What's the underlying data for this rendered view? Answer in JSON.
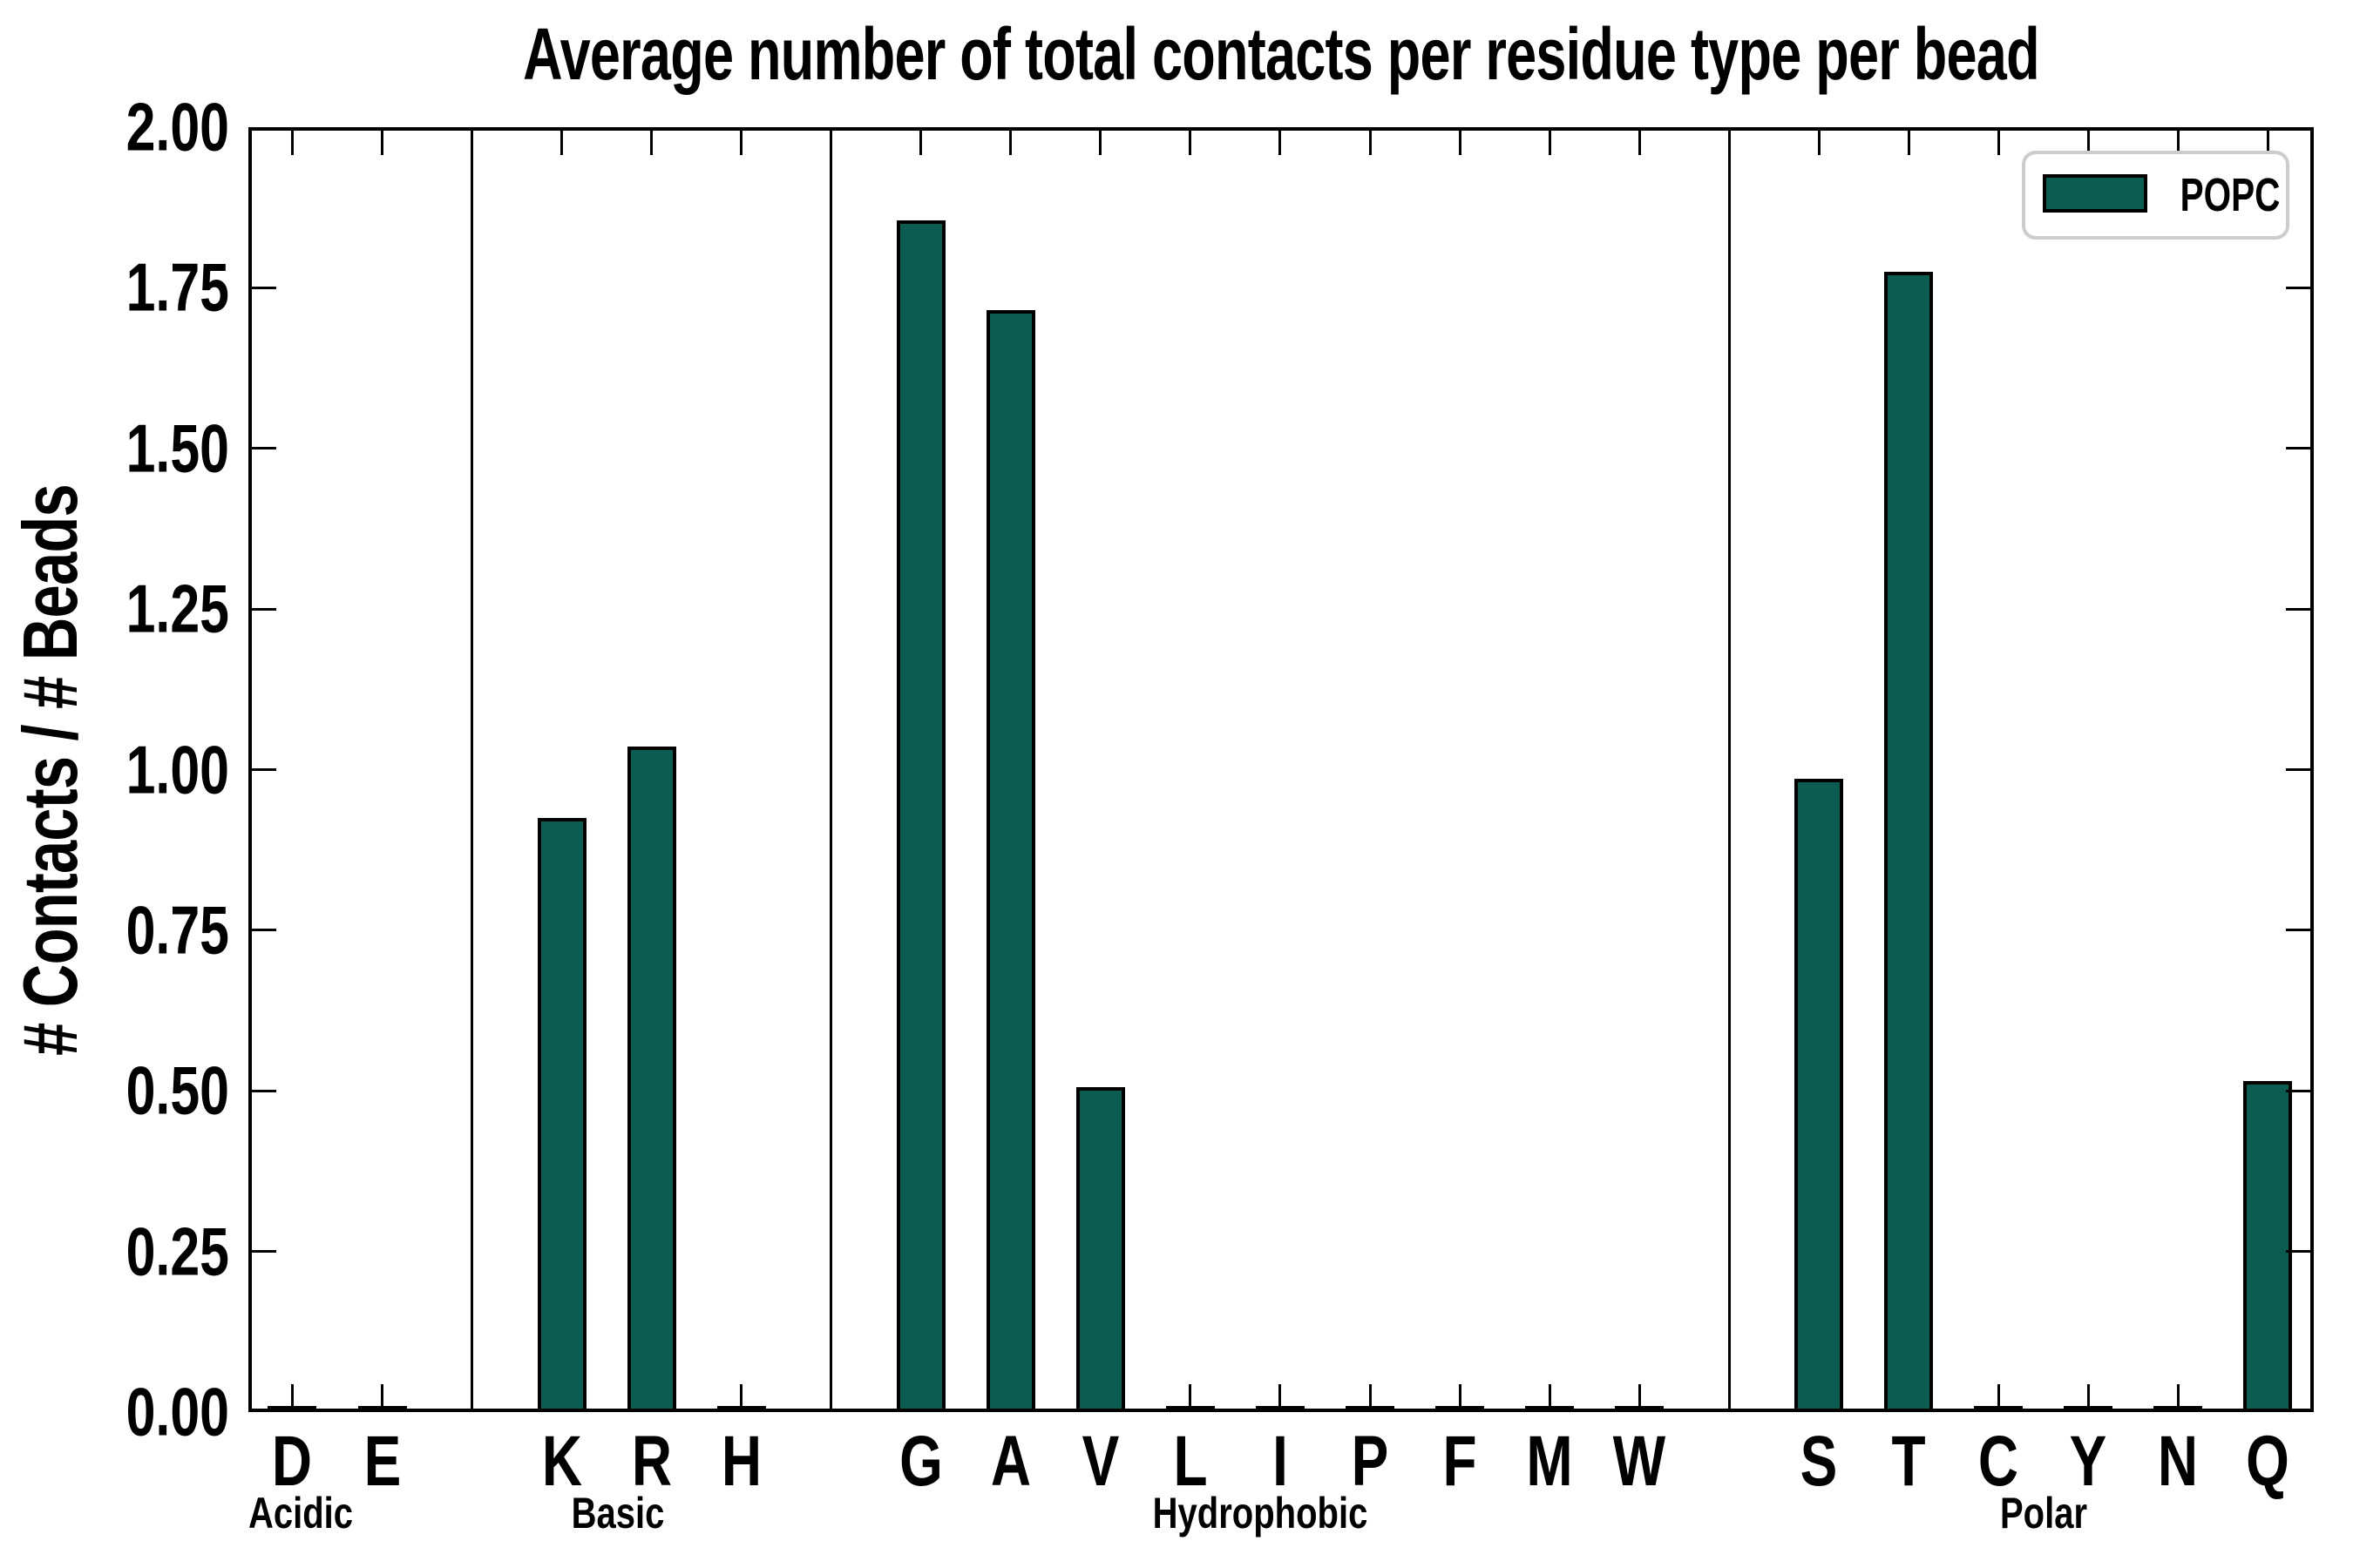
{
  "title": "Average number of total contacts per residue type per bead",
  "ylabel": "# Contacts / # Beads",
  "legend": {
    "label": "POPC"
  },
  "colors": {
    "bar_fill": "#0b5d51",
    "bar_edge": "#000000",
    "axis": "#000000",
    "legend_border": "#cccccc",
    "background": "#ffffff"
  },
  "yticks": [
    "2.00",
    "1.75",
    "1.50",
    "1.25",
    "1.00",
    "0.75",
    "0.50",
    "0.25",
    "0.00"
  ],
  "chart_data": {
    "type": "bar",
    "title": "Average number of total contacts per residue type per bead",
    "xlabel": "",
    "ylabel": "# Contacts / # Beads",
    "ylim": [
      0,
      2
    ],
    "ytick_step": 0.25,
    "grid": false,
    "legend_position": "upper right",
    "series_name": "POPC",
    "categories": [
      "D",
      "E",
      "K",
      "R",
      "H",
      "G",
      "A",
      "V",
      "L",
      "I",
      "P",
      "F",
      "M",
      "W",
      "S",
      "T",
      "C",
      "Y",
      "N",
      "Q"
    ],
    "values": [
      0,
      0,
      0.92,
      1.03,
      0,
      1.85,
      1.71,
      0.5,
      0,
      0,
      0,
      0,
      0,
      0,
      0.98,
      1.77,
      0,
      0,
      0,
      0.51
    ],
    "groups": [
      {
        "label": "Acidic",
        "members": [
          "D",
          "E"
        ]
      },
      {
        "label": "Basic",
        "members": [
          "K",
          "R",
          "H"
        ]
      },
      {
        "label": "Hydrophobic",
        "members": [
          "G",
          "A",
          "V",
          "L",
          "I",
          "P",
          "F",
          "M",
          "W"
        ]
      },
      {
        "label": "Polar",
        "members": [
          "S",
          "T",
          "C",
          "Y",
          "N",
          "Q"
        ]
      }
    ]
  }
}
